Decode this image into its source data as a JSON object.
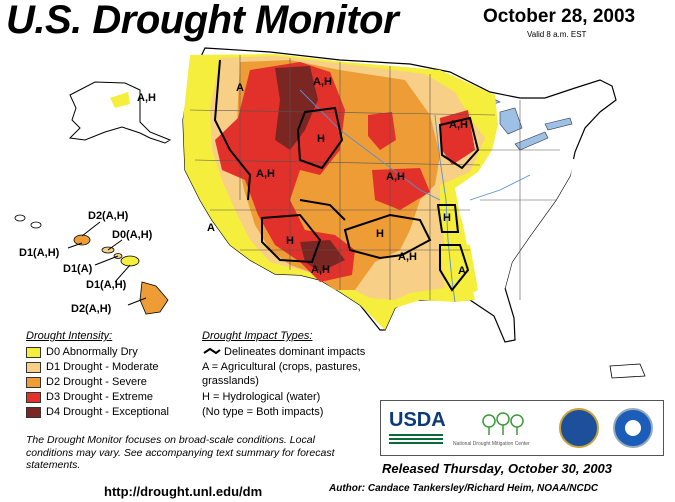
{
  "header": {
    "title": "U.S. Drought Monitor",
    "date": "October 28, 2003",
    "valid": "Valid 8 a.m. EST"
  },
  "colors": {
    "d0": "#f5ee3c",
    "d1": "#f7cf86",
    "d2": "#ee9d36",
    "d3": "#e2302a",
    "d4": "#7a2723",
    "land": "#ffffff",
    "water": "#9cc1e4"
  },
  "legend_intensity": {
    "title": "Drought Intensity:",
    "items": [
      {
        "label": "D0 Abnormally Dry",
        "color": "#f5ee3c"
      },
      {
        "label": "D1 Drought - Moderate",
        "color": "#f7cf86"
      },
      {
        "label": "D2 Drought - Severe",
        "color": "#ee9d36"
      },
      {
        "label": "D3 Drought - Extreme",
        "color": "#e2302a"
      },
      {
        "label": "D4 Drought - Exceptional",
        "color": "#7a2723"
      }
    ]
  },
  "legend_impact": {
    "title": "Drought Impact Types:",
    "lines": [
      "Delineates dominant impacts",
      "A = Agricultural (crops, pastures,",
      "grasslands)",
      "H = Hydrological (water)",
      "(No type = Both impacts)"
    ]
  },
  "map_labels": {
    "alaska": "A,H",
    "nw": "A",
    "montana": "A,H",
    "wyoming": "H",
    "iowa": "A,H",
    "wisc": "A,H",
    "utah": "A,H",
    "nebraska": "A,H",
    "california": "A",
    "az_h": "H",
    "nm": "A,H",
    "ok_h": "H",
    "ar_h": "H",
    "tx": "A,H",
    "la": "A",
    "hi1": "D2(A,H)",
    "hi2": "D0(A,H)",
    "hi3": "D1(A,H)",
    "hi4": "D1(A)",
    "hi5": "D1(A,H)",
    "hi6": "D2(A,H)"
  },
  "footnote": "The Drought Monitor focuses on broad-scale conditions. Local conditions may vary.  See accompanying text summary for forecast statements.",
  "url": "http://drought.unl.edu/dm",
  "released": "Released Thursday, October 30, 2003",
  "author": "Author: Candace Tankersley/Richard Heim, NOAA/NCDC",
  "logos": {
    "usda": "USDA",
    "ndmc": "National Drought Mitigation Center"
  }
}
